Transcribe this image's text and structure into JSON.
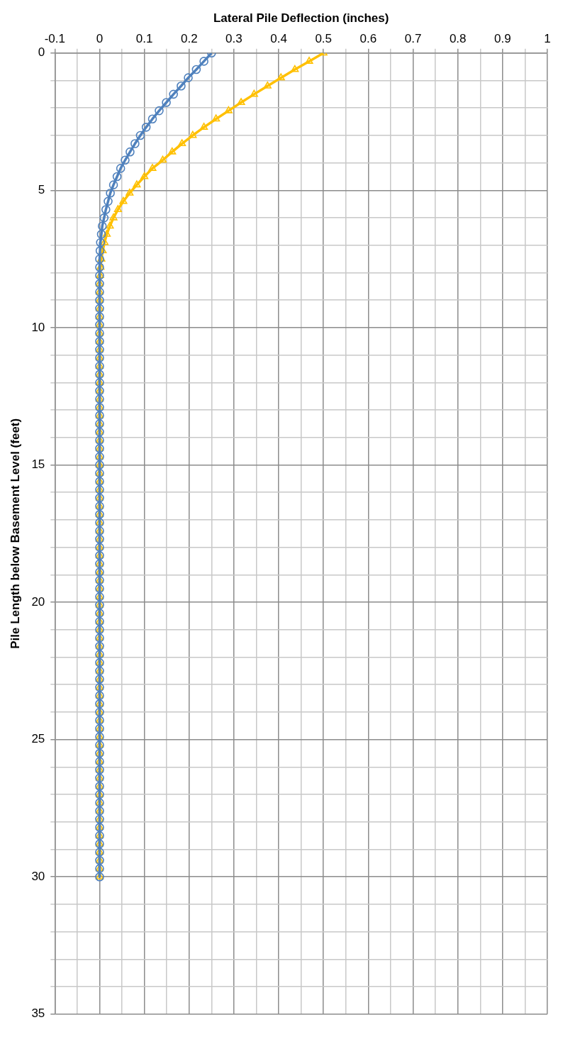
{
  "chart_data": {
    "type": "line",
    "xlabel": "Lateral Pile Deflection (inches)",
    "ylabel": "Pile Length below Basement Level (feet)",
    "xlim": [
      -0.1,
      1
    ],
    "xticks": [
      -0.1,
      {
        "value": -0.05,
        "label": null
      },
      0,
      {
        "value": 0.05,
        "label": null
      },
      0.1,
      {
        "value": 0.15,
        "label": null
      },
      0.2,
      {
        "value": 0.25,
        "label": null
      },
      0.3,
      {
        "value": 0.35,
        "label": null
      },
      0.4,
      {
        "value": 0.45,
        "label": null
      },
      0.5,
      {
        "value": 0.55,
        "label": null
      },
      0.6,
      {
        "value": 0.65,
        "label": null
      },
      0.7,
      {
        "value": 0.75,
        "label": null
      },
      0.8,
      {
        "value": 0.85,
        "label": null
      },
      0.9,
      {
        "value": 0.95,
        "label": null
      },
      1
    ],
    "ylim": [
      35,
      0
    ],
    "yticks": [
      0,
      {
        "value": 1,
        "label": null
      },
      {
        "value": 2,
        "label": null
      },
      {
        "value": 3,
        "label": null
      },
      {
        "value": 4,
        "label": null
      },
      5,
      {
        "value": 6,
        "label": null
      },
      {
        "value": 7,
        "label": null
      },
      {
        "value": 8,
        "label": null
      },
      {
        "value": 9,
        "label": null
      },
      10,
      {
        "value": 11,
        "label": null
      },
      {
        "value": 12,
        "label": null
      },
      {
        "value": 13,
        "label": null
      },
      {
        "value": 14,
        "label": null
      },
      15,
      {
        "value": 16,
        "label": null
      },
      {
        "value": 17,
        "label": null
      },
      {
        "value": 18,
        "label": null
      },
      {
        "value": 19,
        "label": null
      },
      20,
      {
        "value": 21,
        "label": null
      },
      {
        "value": 22,
        "label": null
      },
      {
        "value": 23,
        "label": null
      },
      {
        "value": 24,
        "label": null
      },
      25,
      {
        "value": 26,
        "label": null
      },
      {
        "value": 27,
        "label": null
      },
      {
        "value": 28,
        "label": null
      },
      {
        "value": 29,
        "label": null
      },
      30,
      {
        "value": 31,
        "label": null
      },
      {
        "value": 32,
        "label": null
      },
      {
        "value": 33,
        "label": null
      },
      {
        "value": 34,
        "label": null
      },
      35
    ],
    "grid": true,
    "legend": false,
    "line_style": "solid",
    "series": [
      {
        "color": "#4f81bd",
        "marker": "circle",
        "x": [
          0.25,
          0.233,
          0.216,
          0.198,
          0.182,
          0.165,
          0.149,
          0.133,
          0.118,
          0.104,
          0.091,
          0.079,
          0.068,
          0.057,
          0.047,
          0.039,
          0.031,
          0.024,
          0.019,
          0.014,
          0.01,
          0.006,
          0.004,
          0.002,
          0.001,
          0,
          0,
          0,
          0,
          0,
          0,
          0,
          0,
          0,
          0,
          0,
          0,
          0,
          0,
          0,
          0,
          0,
          0,
          0,
          0,
          0,
          0,
          0,
          0,
          0,
          0,
          0,
          0,
          0,
          0,
          0,
          0,
          0,
          0,
          0,
          0,
          0,
          0,
          0,
          0,
          0,
          0,
          0,
          0,
          0,
          0,
          0,
          0,
          0,
          0,
          0,
          0,
          0,
          0,
          0,
          0,
          0,
          0,
          0,
          0,
          0,
          0,
          0,
          0,
          0,
          0,
          0,
          0,
          0,
          0,
          0,
          0,
          0,
          0,
          0,
          0
        ],
        "values": [
          0,
          0.3,
          0.6,
          0.9,
          1.2,
          1.5,
          1.8,
          2.1,
          2.4,
          2.7,
          3,
          3.3,
          3.6,
          3.9,
          4.2,
          4.5,
          4.8,
          5.1,
          5.4,
          5.7,
          6,
          6.3,
          6.6,
          6.9,
          7.2,
          7.5,
          7.8,
          8.1,
          8.4,
          8.7,
          9,
          9.3,
          9.6,
          9.9,
          10.2,
          10.5,
          10.8,
          11.1,
          11.4,
          11.7,
          12,
          12.3,
          12.6,
          12.9,
          13.2,
          13.5,
          13.8,
          14.1,
          14.4,
          14.7,
          15,
          15.3,
          15.6,
          15.9,
          16.2,
          16.5,
          16.8,
          17.1,
          17.4,
          17.7,
          18,
          18.3,
          18.6,
          18.9,
          19.2,
          19.5,
          19.8,
          20.1,
          20.4,
          20.7,
          21,
          21.3,
          21.6,
          21.9,
          22.2,
          22.5,
          22.8,
          23.1,
          23.4,
          23.7,
          24,
          24.3,
          24.6,
          24.9,
          25.2,
          25.5,
          25.8,
          26.1,
          26.4,
          26.7,
          27,
          27.3,
          27.6,
          27.9,
          28.2,
          28.5,
          28.8,
          29.1,
          29.4,
          29.7,
          30
        ]
      },
      {
        "color": "#ffc000",
        "marker": "triangle",
        "x": [
          0.5,
          0.468,
          0.436,
          0.405,
          0.375,
          0.345,
          0.316,
          0.288,
          0.26,
          0.233,
          0.208,
          0.184,
          0.162,
          0.141,
          0.118,
          0.1,
          0.083,
          0.067,
          0.053,
          0.041,
          0.031,
          0.023,
          0.016,
          0.011,
          0.007,
          0.004,
          0.002,
          0.001,
          0,
          0,
          0,
          0,
          0,
          0,
          0,
          0,
          0,
          0,
          0,
          0,
          0,
          0,
          0,
          0,
          0,
          0,
          0,
          0,
          0,
          0,
          0,
          0,
          0,
          0,
          0,
          0,
          0,
          0,
          0,
          0,
          0,
          0,
          0,
          0,
          0,
          0,
          0,
          0,
          0,
          0,
          0,
          0,
          0,
          0,
          0,
          0,
          0,
          0,
          0,
          0,
          0,
          0,
          0,
          0,
          0,
          0,
          0,
          0,
          0,
          0,
          0,
          0,
          0,
          0,
          0,
          0,
          0,
          0,
          0,
          0,
          0
        ],
        "values": [
          0,
          0.3,
          0.6,
          0.9,
          1.2,
          1.5,
          1.8,
          2.1,
          2.4,
          2.7,
          3,
          3.3,
          3.6,
          3.9,
          4.2,
          4.5,
          4.8,
          5.1,
          5.4,
          5.7,
          6,
          6.3,
          6.6,
          6.9,
          7.2,
          7.5,
          7.8,
          8.1,
          8.4,
          8.7,
          9,
          9.3,
          9.6,
          9.9,
          10.2,
          10.5,
          10.8,
          11.1,
          11.4,
          11.7,
          12,
          12.3,
          12.6,
          12.9,
          13.2,
          13.5,
          13.8,
          14.1,
          14.4,
          14.7,
          15,
          15.3,
          15.6,
          15.9,
          16.2,
          16.5,
          16.8,
          17.1,
          17.4,
          17.7,
          18,
          18.3,
          18.6,
          18.9,
          19.2,
          19.5,
          19.8,
          20.1,
          20.4,
          20.7,
          21,
          21.3,
          21.6,
          21.9,
          22.2,
          22.5,
          22.8,
          23.1,
          23.4,
          23.7,
          24,
          24.3,
          24.6,
          24.9,
          25.2,
          25.5,
          25.8,
          26.1,
          26.4,
          26.7,
          27,
          27.3,
          27.6,
          27.9,
          28.2,
          28.5,
          28.8,
          29.1,
          29.4,
          29.7,
          30
        ]
      }
    ]
  }
}
